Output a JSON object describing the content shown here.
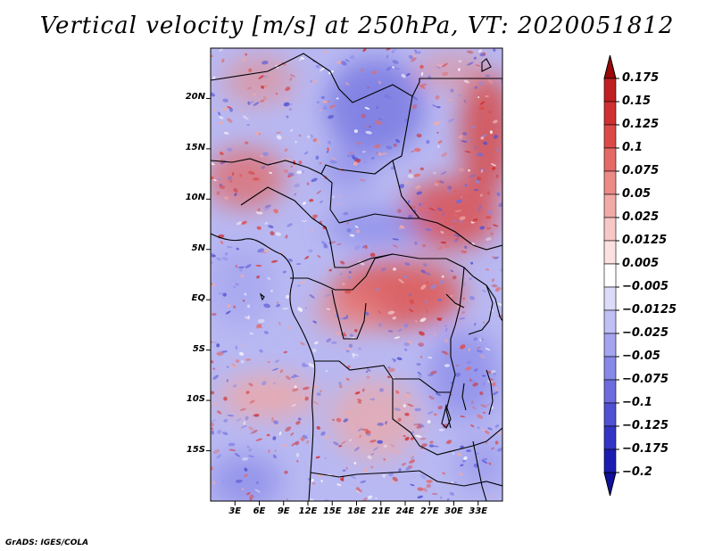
{
  "title": "Vertical velocity [m/s] at 250hPa, VT: 2020051812",
  "credit": "GrADS: IGES/COLA",
  "map": {
    "variable": "Vertical velocity",
    "units": "m/s",
    "level": "250hPa",
    "valid_time": "2020051812",
    "lon_range": [
      0,
      36
    ],
    "lat_range": [
      -20,
      25
    ],
    "lat_ticks": [
      {
        "value": 20,
        "label": "20N"
      },
      {
        "value": 15,
        "label": "15N"
      },
      {
        "value": 10,
        "label": "10N"
      },
      {
        "value": 5,
        "label": "5N"
      },
      {
        "value": 0,
        "label": "EQ"
      },
      {
        "value": -5,
        "label": "5S"
      },
      {
        "value": -10,
        "label": "10S"
      },
      {
        "value": -15,
        "label": "15S"
      }
    ],
    "lon_ticks": [
      {
        "value": 3,
        "label": "3E"
      },
      {
        "value": 6,
        "label": "6E"
      },
      {
        "value": 9,
        "label": "9E"
      },
      {
        "value": 12,
        "label": "12E"
      },
      {
        "value": 15,
        "label": "15E"
      },
      {
        "value": 18,
        "label": "18E"
      },
      {
        "value": 21,
        "label": "21E"
      },
      {
        "value": 24,
        "label": "24E"
      },
      {
        "value": 27,
        "label": "27E"
      },
      {
        "value": 30,
        "label": "30E"
      },
      {
        "value": 33,
        "label": "33E"
      }
    ]
  },
  "colorbar": {
    "levels": [
      {
        "label": "0.175",
        "color": "#b01010"
      },
      {
        "label": "0.15",
        "color": "#c02020"
      },
      {
        "label": "0.125",
        "color": "#cf3030"
      },
      {
        "label": "0.1",
        "color": "#dc4a48"
      },
      {
        "label": "0.075",
        "color": "#e46a66"
      },
      {
        "label": "0.05",
        "color": "#ec8a86"
      },
      {
        "label": "0.025",
        "color": "#f2aaa6"
      },
      {
        "label": "0.0125",
        "color": "#f7c8c5"
      },
      {
        "label": "0.005",
        "color": "#fbe2e0"
      },
      {
        "label": "−0.005",
        "color": "#ffffff"
      },
      {
        "label": "−0.0125",
        "color": "#dcdcfa"
      },
      {
        "label": "−0.025",
        "color": "#c0c0f6"
      },
      {
        "label": "−0.05",
        "color": "#a4a4f0"
      },
      {
        "label": "−0.075",
        "color": "#8888e8"
      },
      {
        "label": "−0.1",
        "color": "#6c6cde"
      },
      {
        "label": "−0.125",
        "color": "#5050d2"
      },
      {
        "label": "−0.175",
        "color": "#3434c4"
      },
      {
        "label": "−0.2",
        "color": "#1c1cb0"
      }
    ],
    "top_color": "#9a0808",
    "bottom_color": "#10109a"
  }
}
